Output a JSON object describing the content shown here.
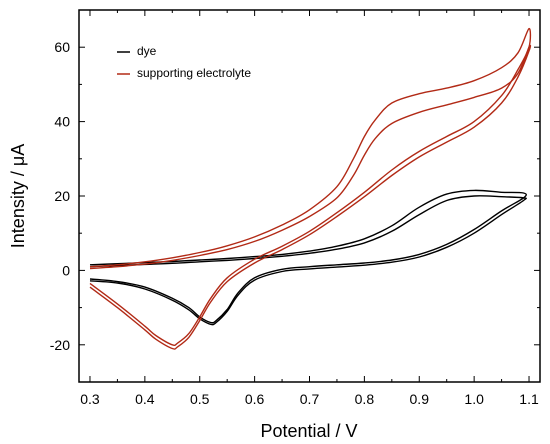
{
  "chart_data": {
    "type": "line",
    "xlabel": "Potential / V",
    "ylabel": "Intensity / μA",
    "xlim": [
      0.28,
      1.12
    ],
    "ylim": [
      -30,
      70
    ],
    "xticks": [
      "0.3",
      "0.4",
      "0.5",
      "0.6",
      "0.7",
      "0.8",
      "0.9",
      "1.0",
      "1.1"
    ],
    "yticks": [
      "-20",
      "0",
      "20",
      "40",
      "60"
    ],
    "legend_position": "top-left",
    "series": [
      {
        "name": "dye",
        "color": "#000000",
        "cycles": [
          {
            "x": [
              0.3,
              0.35,
              0.4,
              0.45,
              0.5,
              0.55,
              0.6,
              0.65,
              0.7,
              0.75,
              0.8,
              0.85,
              0.9,
              0.95,
              1.0,
              1.05,
              1.09,
              1.09,
              1.05,
              1.0,
              0.95,
              0.9,
              0.85,
              0.8,
              0.75,
              0.7,
              0.65,
              0.6,
              0.57,
              0.55,
              0.53,
              0.52,
              0.5,
              0.48,
              0.45,
              0.4,
              0.35,
              0.3
            ],
            "y": [
              1.5,
              1.8,
              2.1,
              2.4,
              2.8,
              3.2,
              3.7,
              4.3,
              5.2,
              6.5,
              8.5,
              12.0,
              17.0,
              20.5,
              21.5,
              21.0,
              20.8,
              19.5,
              16.0,
              11.0,
              7.0,
              4.3,
              2.8,
              2.0,
              1.5,
              1.0,
              0.3,
              -2.0,
              -6.0,
              -10.5,
              -13.5,
              -14.0,
              -12.5,
              -10.0,
              -7.5,
              -4.5,
              -3.0,
              -2.3
            ]
          },
          {
            "x": [
              0.3,
              0.35,
              0.4,
              0.45,
              0.5,
              0.55,
              0.6,
              0.65,
              0.7,
              0.75,
              0.8,
              0.85,
              0.9,
              0.95,
              1.0,
              1.05,
              1.09,
              1.09,
              1.05,
              1.0,
              0.95,
              0.9,
              0.85,
              0.8,
              0.75,
              0.7,
              0.65,
              0.6,
              0.57,
              0.55,
              0.53,
              0.52,
              0.5,
              0.48,
              0.45,
              0.4,
              0.35,
              0.3
            ],
            "y": [
              1.0,
              1.3,
              1.6,
              1.9,
              2.3,
              2.7,
              3.2,
              3.8,
              4.6,
              5.7,
              7.4,
              10.5,
              15.0,
              18.8,
              20.0,
              19.8,
              19.5,
              18.8,
              15.0,
              10.0,
              6.2,
              3.6,
              2.2,
              1.4,
              0.9,
              0.4,
              -0.3,
              -2.6,
              -6.6,
              -11.0,
              -14.0,
              -14.5,
              -13.0,
              -10.6,
              -8.0,
              -5.0,
              -3.4,
              -2.8
            ]
          }
        ]
      },
      {
        "name": "supporting electrolyte",
        "color": "#b22a16",
        "cycles": [
          {
            "x": [
              0.3,
              0.35,
              0.4,
              0.45,
              0.5,
              0.55,
              0.6,
              0.65,
              0.7,
              0.75,
              0.78,
              0.8,
              0.82,
              0.85,
              0.9,
              0.95,
              1.0,
              1.05,
              1.08,
              1.1,
              1.1,
              1.08,
              1.05,
              1.0,
              0.95,
              0.9,
              0.85,
              0.8,
              0.75,
              0.7,
              0.65,
              0.6,
              0.55,
              0.52,
              0.5,
              0.48,
              0.46,
              0.45,
              0.42,
              0.4,
              0.35,
              0.3
            ],
            "y": [
              1.0,
              1.5,
              2.3,
              3.4,
              4.8,
              6.6,
              9.0,
              12.2,
              16.3,
              22.5,
              30.0,
              36.0,
              40.5,
              45.0,
              47.5,
              49.0,
              51.0,
              54.5,
              58.5,
              65.0,
              60.0,
              54.0,
              47.0,
              40.0,
              36.0,
              32.0,
              27.0,
              21.0,
              15.5,
              10.5,
              6.5,
              3.0,
              -2.0,
              -7.5,
              -12.5,
              -17.0,
              -19.5,
              -20.0,
              -17.5,
              -15.0,
              -9.0,
              -3.5
            ]
          },
          {
            "x": [
              0.3,
              0.35,
              0.4,
              0.45,
              0.5,
              0.55,
              0.6,
              0.65,
              0.7,
              0.75,
              0.78,
              0.8,
              0.82,
              0.85,
              0.9,
              0.95,
              1.0,
              1.05,
              1.08,
              1.1,
              1.1,
              1.08,
              1.05,
              1.0,
              0.95,
              0.9,
              0.85,
              0.8,
              0.75,
              0.7,
              0.65,
              0.6,
              0.55,
              0.52,
              0.5,
              0.48,
              0.46,
              0.45,
              0.42,
              0.4,
              0.35,
              0.3
            ],
            "y": [
              0.5,
              1.0,
              1.7,
              2.7,
              4.0,
              5.6,
              7.8,
              10.8,
              14.5,
              19.5,
              25.5,
              31.0,
              35.5,
              39.5,
              42.5,
              44.5,
              46.5,
              49.0,
              53.0,
              60.0,
              59.0,
              52.0,
              45.0,
              38.5,
              34.5,
              30.5,
              25.5,
              19.8,
              14.5,
              9.6,
              5.6,
              2.0,
              -3.0,
              -8.5,
              -13.5,
              -18.0,
              -20.5,
              -21.0,
              -18.5,
              -16.0,
              -10.0,
              -4.5
            ]
          }
        ]
      }
    ]
  }
}
